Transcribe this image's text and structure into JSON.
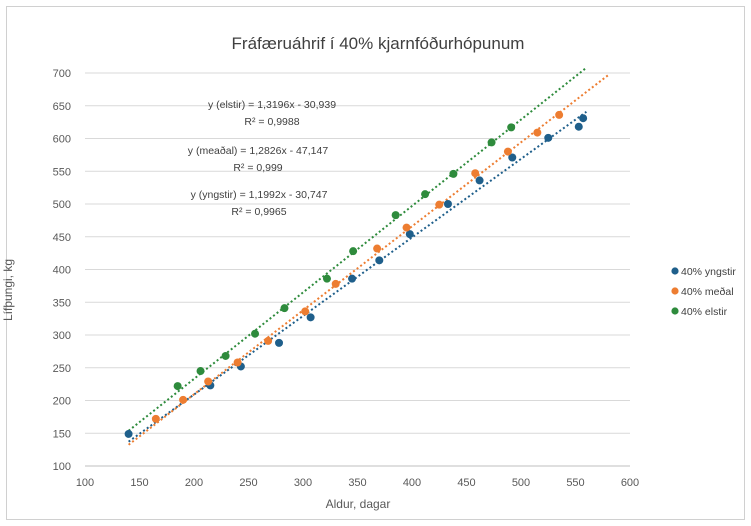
{
  "chart_data": {
    "type": "scatter",
    "title": "Fráfæruáhrif í 40% kjarnfóðurhópunum",
    "xlabel": "Aldur, dagar",
    "ylabel": "Lífþungi, kg",
    "xlim": [
      100,
      600
    ],
    "ylim": [
      100,
      700
    ],
    "xticks": [
      "100",
      "150",
      "200",
      "250",
      "300",
      "350",
      "400",
      "450",
      "500",
      "550",
      "600"
    ],
    "yticks": [
      "100",
      "150",
      "200",
      "250",
      "300",
      "350",
      "400",
      "450",
      "500",
      "550",
      "600",
      "650",
      "700"
    ],
    "grid": "horizontal",
    "legend_position": "right",
    "series": [
      {
        "name": "40% yngstir",
        "color": "#1f5f8b",
        "x": [
          140,
          215,
          243,
          278,
          307,
          345,
          370,
          398,
          433,
          462,
          492,
          525,
          553,
          557
        ],
        "y": [
          149,
          223,
          252,
          288,
          327,
          386,
          414,
          454,
          500,
          536,
          571,
          601,
          618,
          631
        ],
        "trendline": {
          "slope": 1.1992,
          "intercept": -30.747,
          "x_range": [
            140,
            560
          ]
        },
        "equation": "y (yngstir) = 1,1992x - 30,747",
        "r2": "R² = 0,9965"
      },
      {
        "name": "40% meðal",
        "color": "#ed7d31",
        "x": [
          165,
          190,
          213,
          240,
          268,
          302,
          330,
          368,
          395,
          425,
          458,
          488,
          515,
          535
        ],
        "y": [
          172,
          201,
          229,
          258,
          291,
          336,
          378,
          432,
          464,
          499,
          547,
          580,
          609,
          636
        ],
        "trendline": {
          "slope": 1.2826,
          "intercept": -47.147,
          "x_range": [
            140,
            580
          ]
        },
        "equation": "y (meaðal) = 1,2826x - 47,147",
        "r2": "R² = 0,999"
      },
      {
        "name": "40% elstir",
        "color": "#2e8b3c",
        "x": [
          185,
          206,
          229,
          256,
          283,
          322,
          346,
          385,
          412,
          438,
          473,
          491
        ],
        "y": [
          222,
          245,
          268,
          302,
          341,
          386,
          428,
          483,
          515,
          546,
          594,
          617
        ],
        "trendline": {
          "slope": 1.3196,
          "intercept": -30.939,
          "x_range": [
            140,
            560
          ]
        },
        "equation": "y (elstir) = 1,3196x - 30,939",
        "r2": "R² = 0,9988"
      }
    ]
  }
}
